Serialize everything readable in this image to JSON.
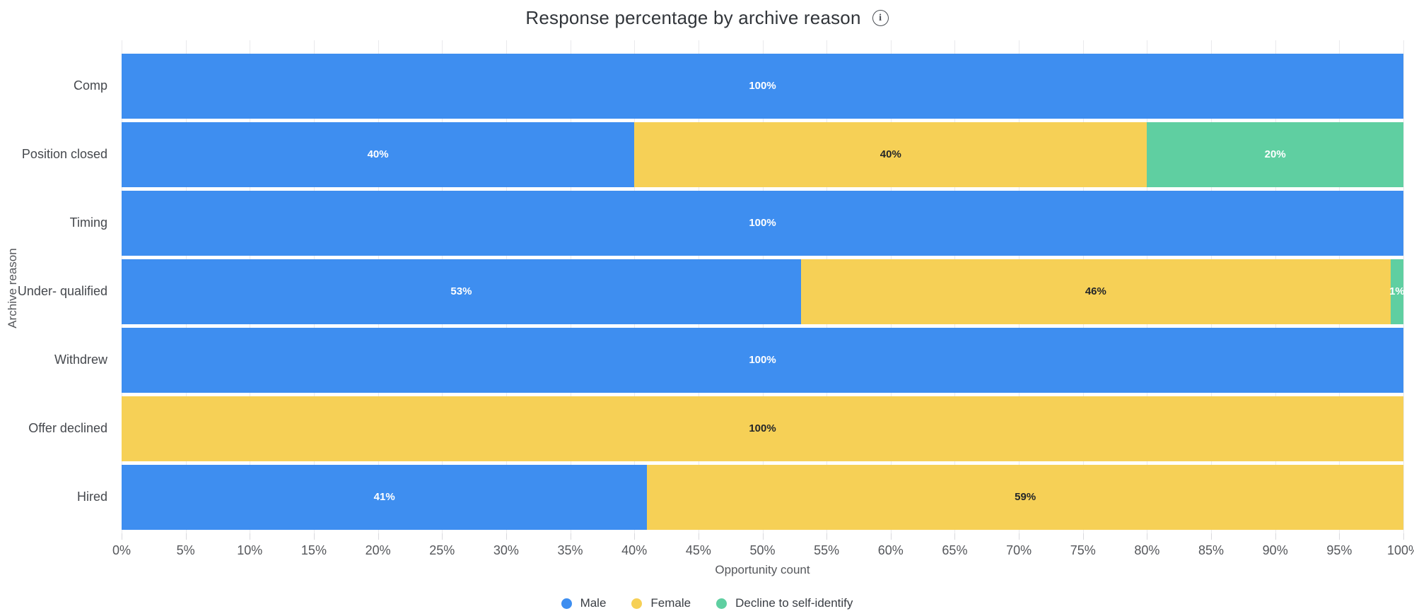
{
  "title": {
    "text": "Response percentage by archive reason"
  },
  "info_icon": {
    "glyph": "i"
  },
  "axes": {
    "y_label": "Archive reason",
    "x_label": "Opportunity count",
    "x_ticks": [
      "0%",
      "5%",
      "10%",
      "15%",
      "20%",
      "25%",
      "30%",
      "35%",
      "40%",
      "45%",
      "50%",
      "55%",
      "60%",
      "65%",
      "70%",
      "75%",
      "80%",
      "85%",
      "90%",
      "95%",
      "100%"
    ]
  },
  "chart_data": {
    "type": "bar",
    "orientation": "horizontal",
    "stacked": true,
    "title": "Response percentage by archive reason",
    "xlabel": "Opportunity count",
    "ylabel": "Archive reason",
    "xlim": [
      0,
      100
    ],
    "x_tick_step": 5,
    "grid": true,
    "legend_position": "bottom",
    "value_suffix": "%",
    "categories": [
      "Comp",
      "Position closed",
      "Timing",
      "Under- qualified",
      "Withdrew",
      "Offer declined",
      "Hired"
    ],
    "series": [
      {
        "name": "Male",
        "color": "#3e8ef0",
        "label_color": "#ffffff",
        "values": [
          100,
          40,
          100,
          53,
          100,
          0,
          41
        ]
      },
      {
        "name": "Female",
        "color": "#f6d056",
        "label_color": "#242629",
        "values": [
          0,
          40,
          0,
          46,
          0,
          100,
          59
        ]
      },
      {
        "name": "Decline to self-identify",
        "color": "#5fcfa1",
        "label_color": "#ffffff",
        "values": [
          0,
          20,
          0,
          1,
          0,
          0,
          0
        ]
      }
    ]
  }
}
